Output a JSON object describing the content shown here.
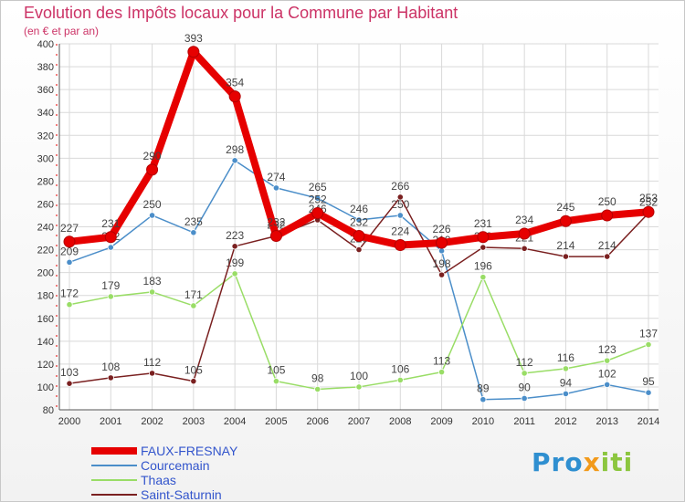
{
  "header": {
    "title": "Evolution des Impôts locaux pour la Commune par Habitant",
    "subtitle": "(en € et par an)"
  },
  "logo": {
    "text": "Proxiti",
    "colors": [
      "#2f8fd0",
      "#f29a1b",
      "#8cc63f"
    ]
  },
  "chart_data": {
    "type": "line",
    "title": "Evolution des Impôts locaux pour la Commune par Habitant",
    "subtitle": "(en € et par an)",
    "xlabel": "",
    "ylabel": "",
    "x": [
      2000,
      2001,
      2002,
      2003,
      2004,
      2005,
      2006,
      2007,
      2008,
      2009,
      2010,
      2011,
      2012,
      2013,
      2014
    ],
    "ylim": [
      80,
      400
    ],
    "yticks": [
      80,
      100,
      120,
      140,
      160,
      180,
      200,
      220,
      240,
      260,
      280,
      300,
      320,
      340,
      360,
      380,
      400
    ],
    "grid": true,
    "legend_position": "bottom-left",
    "series": [
      {
        "name": "FAUX-FRESNAY",
        "color": "#e60000",
        "emphasis": true,
        "values": [
          227,
          231,
          290,
          393,
          354,
          232,
          252,
          232,
          224,
          226,
          231,
          234,
          245,
          250,
          253
        ],
        "labels": [
          "227",
          "231",
          "290",
          "393",
          "354",
          "232",
          "252",
          "232",
          "224",
          "226",
          "231",
          "234",
          "245",
          "250",
          "253"
        ]
      },
      {
        "name": "Courcemain",
        "color": "#4b8ec9",
        "emphasis": false,
        "values": [
          209,
          222,
          250,
          235,
          298,
          274,
          265,
          246,
          250,
          219,
          89,
          90,
          94,
          102,
          95
        ],
        "labels": [
          "209",
          "222",
          "250",
          "235",
          "298",
          "274",
          "265",
          "246",
          "250",
          "219",
          "89",
          "90",
          "94",
          "102",
          "95"
        ]
      },
      {
        "name": "Thaas",
        "color": "#99dd66",
        "emphasis": false,
        "values": [
          172,
          179,
          183,
          171,
          199,
          105,
          98,
          100,
          106,
          113,
          196,
          112,
          116,
          123,
          137
        ],
        "labels": [
          "172",
          "179",
          "183",
          "171",
          "199",
          "105",
          "98",
          "100",
          "106",
          "113",
          "196",
          "112",
          "116",
          "123",
          "137"
        ]
      },
      {
        "name": "Saint-Saturnin",
        "color": "#7a2020",
        "emphasis": false,
        "values": [
          103,
          108,
          112,
          105,
          223,
          232,
          246,
          220,
          266,
          198,
          222,
          221,
          214,
          214,
          252
        ],
        "labels": [
          "103",
          "108",
          "112",
          "105",
          "223",
          "232",
          "246",
          "220",
          "266",
          "198",
          "222",
          "221",
          "214",
          "214",
          "252"
        ]
      }
    ]
  }
}
